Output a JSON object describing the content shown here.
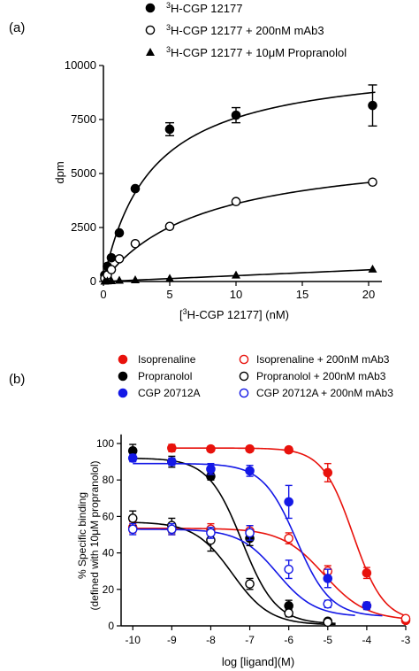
{
  "chart_data": [
    {
      "panel_label": "(a)",
      "type": "scatter",
      "xlabel": "[3H-CGP 12177] (nM)",
      "xlabel_parts": {
        "open": "[",
        "sup": "3",
        "rest": "H-CGP 12177] (nM)"
      },
      "ylabel": "dpm",
      "xlim": [
        0,
        21
      ],
      "ylim": [
        0,
        10000
      ],
      "xticks": [
        0,
        5,
        10,
        15,
        20
      ],
      "yticks": [
        0,
        2500,
        5000,
        7500,
        10000
      ],
      "xtick_labels": [
        "0",
        "5",
        "10",
        "15",
        "20"
      ],
      "ytick_labels": [
        "0",
        "2500",
        "5000",
        "7500",
        "10000"
      ],
      "grid": false,
      "legend_position": "top",
      "series": [
        {
          "name": "3H-CGP 12177",
          "legend_sup": "3",
          "legend_rest": "H-CGP 12177",
          "marker": "filled-circle",
          "color": "#000000",
          "points": [
            {
              "x": 0.1,
              "y": 300
            },
            {
              "x": 0.3,
              "y": 700
            },
            {
              "x": 0.6,
              "y": 1100
            },
            {
              "x": 1.2,
              "y": 2250
            },
            {
              "x": 2.4,
              "y": 4300
            },
            {
              "x": 5,
              "y": 7050,
              "err": 300
            },
            {
              "x": 10,
              "y": 7700,
              "err": 350
            },
            {
              "x": 20.3,
              "y": 8150,
              "err": 950
            }
          ],
          "fit": {
            "model": "one-site",
            "bmax": 10300,
            "kd": 3.6,
            "xmax": 20.5
          }
        },
        {
          "name": "3H-CGP 12177 + 200nM mAb3",
          "legend_sup": "3",
          "legend_rest": "H-CGP 12177 + 200nM mAb3",
          "marker": "open-circle",
          "color": "#000000",
          "points": [
            {
              "x": 0.1,
              "y": 150
            },
            {
              "x": 0.3,
              "y": 300
            },
            {
              "x": 0.6,
              "y": 550
            },
            {
              "x": 1.2,
              "y": 1050
            },
            {
              "x": 2.4,
              "y": 1750
            },
            {
              "x": 5,
              "y": 2550
            },
            {
              "x": 10,
              "y": 3700
            },
            {
              "x": 20.3,
              "y": 4600
            }
          ],
          "fit": {
            "model": "one-site",
            "bmax": 6300,
            "kd": 7.5,
            "xmax": 20.5
          }
        },
        {
          "name": "3H-CGP 12177 + 10μM Propranolol",
          "legend_sup": "3",
          "legend_rest": "H-CGP 12177 + 10μM Propranolol",
          "marker": "filled-triangle",
          "color": "#000000",
          "points": [
            {
              "x": 0.1,
              "y": 20
            },
            {
              "x": 0.3,
              "y": 30
            },
            {
              "x": 0.6,
              "y": 40
            },
            {
              "x": 1.2,
              "y": 60
            },
            {
              "x": 2.4,
              "y": 80
            },
            {
              "x": 5,
              "y": 150
            },
            {
              "x": 10,
              "y": 300
            },
            {
              "x": 20.3,
              "y": 580
            }
          ],
          "fit": {
            "model": "linear",
            "slope": 27,
            "intercept": 0,
            "xmax": 20.5
          }
        }
      ]
    },
    {
      "panel_label": "(b)",
      "type": "scatter",
      "xlabel": "log [ligand](M)",
      "ylabel": "% Specific binding",
      "ylabel2": "(defined with 10μM propranolol)",
      "xlim": [
        -10.3,
        -3
      ],
      "ylim": [
        0,
        100
      ],
      "xticks": [
        -10,
        -9,
        -8,
        -7,
        -6,
        -5,
        -4,
        -3
      ],
      "yticks": [
        0,
        20,
        40,
        60,
        80,
        100
      ],
      "xtick_labels": [
        "-10",
        "-9",
        "-8",
        "-7",
        "-6",
        "-5",
        "-4",
        "-3"
      ],
      "ytick_labels": [
        "0",
        "20",
        "40",
        "60",
        "80",
        "100"
      ],
      "grid": false,
      "legend_position": "top",
      "series": [
        {
          "name": "Isoprenaline",
          "marker": "filled-circle",
          "color": "#e8120c",
          "points": [
            {
              "x": -9,
              "y": 97.5,
              "err": 2
            },
            {
              "x": -8,
              "y": 97,
              "err": 1.5
            },
            {
              "x": -7,
              "y": 97,
              "err": 1.5
            },
            {
              "x": -6,
              "y": 96.5,
              "err": 1.5
            },
            {
              "x": -5,
              "y": 84,
              "err": 5
            },
            {
              "x": -4,
              "y": 29,
              "err": 3
            },
            {
              "x": -3,
              "y": 3,
              "err": 1
            }
          ],
          "fit": {
            "top": 97.5,
            "bottom": 2.5,
            "logic50": -4.35,
            "hill": 1.1,
            "xmin": -9,
            "xmax": -3
          }
        },
        {
          "name": "Isoprenaline + 200nM mAb3",
          "marker": "open-circle",
          "color": "#e8120c",
          "points": [
            {
              "x": -10,
              "y": 54,
              "err": 3
            },
            {
              "x": -9,
              "y": 53,
              "err": 3
            },
            {
              "x": -8,
              "y": 53,
              "err": 3
            },
            {
              "x": -7,
              "y": 52,
              "err": 3
            },
            {
              "x": -6,
              "y": 48,
              "err": 3
            },
            {
              "x": -5,
              "y": 30,
              "err": 3
            },
            {
              "x": -4,
              "y": 11,
              "err": 2
            },
            {
              "x": -3,
              "y": 4,
              "err": 1
            }
          ],
          "fit": {
            "top": 53.5,
            "bottom": 3,
            "logic50": -5.1,
            "hill": 0.8,
            "xmin": -10,
            "xmax": -3
          }
        },
        {
          "name": "Propranolol",
          "marker": "filled-circle",
          "color": "#000000",
          "points": [
            {
              "x": -10,
              "y": 96,
              "err": 3.5
            },
            {
              "x": -9,
              "y": 90,
              "err": 3
            },
            {
              "x": -8,
              "y": 82,
              "err": 2
            },
            {
              "x": -7,
              "y": 48,
              "err": 4
            },
            {
              "x": -6,
              "y": 11,
              "err": 3
            },
            {
              "x": -5,
              "y": 2.5,
              "err": 1
            }
          ],
          "fit": {
            "top": 92,
            "bottom": 1,
            "logic50": -7.2,
            "hill": 1,
            "xmin": -10,
            "xmax": -4.8
          }
        },
        {
          "name": "Propranolol + 200nM mAb3",
          "marker": "open-circle",
          "color": "#000000",
          "points": [
            {
              "x": -10,
              "y": 59,
              "err": 4
            },
            {
              "x": -9,
              "y": 55,
              "err": 4
            },
            {
              "x": -8,
              "y": 47,
              "err": 6
            },
            {
              "x": -7,
              "y": 23,
              "err": 3
            },
            {
              "x": -6,
              "y": 7,
              "err": 2
            },
            {
              "x": -5,
              "y": 2,
              "err": 1
            }
          ],
          "fit": {
            "top": 57,
            "bottom": 0.5,
            "logic50": -7.45,
            "hill": 0.9,
            "xmin": -10,
            "xmax": -4.8
          }
        },
        {
          "name": "CGP 20712A",
          "marker": "filled-circle",
          "color": "#1418e6",
          "points": [
            {
              "x": -10,
              "y": 92,
              "err": 2
            },
            {
              "x": -9,
              "y": 90,
              "err": 2
            },
            {
              "x": -8,
              "y": 86,
              "err": 3
            },
            {
              "x": -7,
              "y": 85,
              "err": 3
            },
            {
              "x": -6,
              "y": 68,
              "err": 9
            },
            {
              "x": -5,
              "y": 26,
              "err": 5
            },
            {
              "x": -4,
              "y": 11,
              "err": 2
            }
          ],
          "fit": {
            "top": 89,
            "bottom": 5,
            "logic50": -5.8,
            "hill": 1,
            "xmin": -10,
            "xmax": -3.6
          }
        },
        {
          "name": "CGP 20712A + 200nM mAb3",
          "marker": "open-circle",
          "color": "#1418e6",
          "points": [
            {
              "x": -10,
              "y": 53,
              "err": 3
            },
            {
              "x": -9,
              "y": 53,
              "err": 3
            },
            {
              "x": -8,
              "y": 51,
              "err": 3
            },
            {
              "x": -7,
              "y": 51,
              "err": 4
            },
            {
              "x": -6,
              "y": 31,
              "err": 5
            },
            {
              "x": -5,
              "y": 12,
              "err": 2
            }
          ],
          "fit": {
            "top": 53,
            "bottom": 5,
            "logic50": -6.3,
            "hill": 0.9,
            "xmin": -10,
            "xmax": -4.3
          }
        }
      ]
    }
  ]
}
